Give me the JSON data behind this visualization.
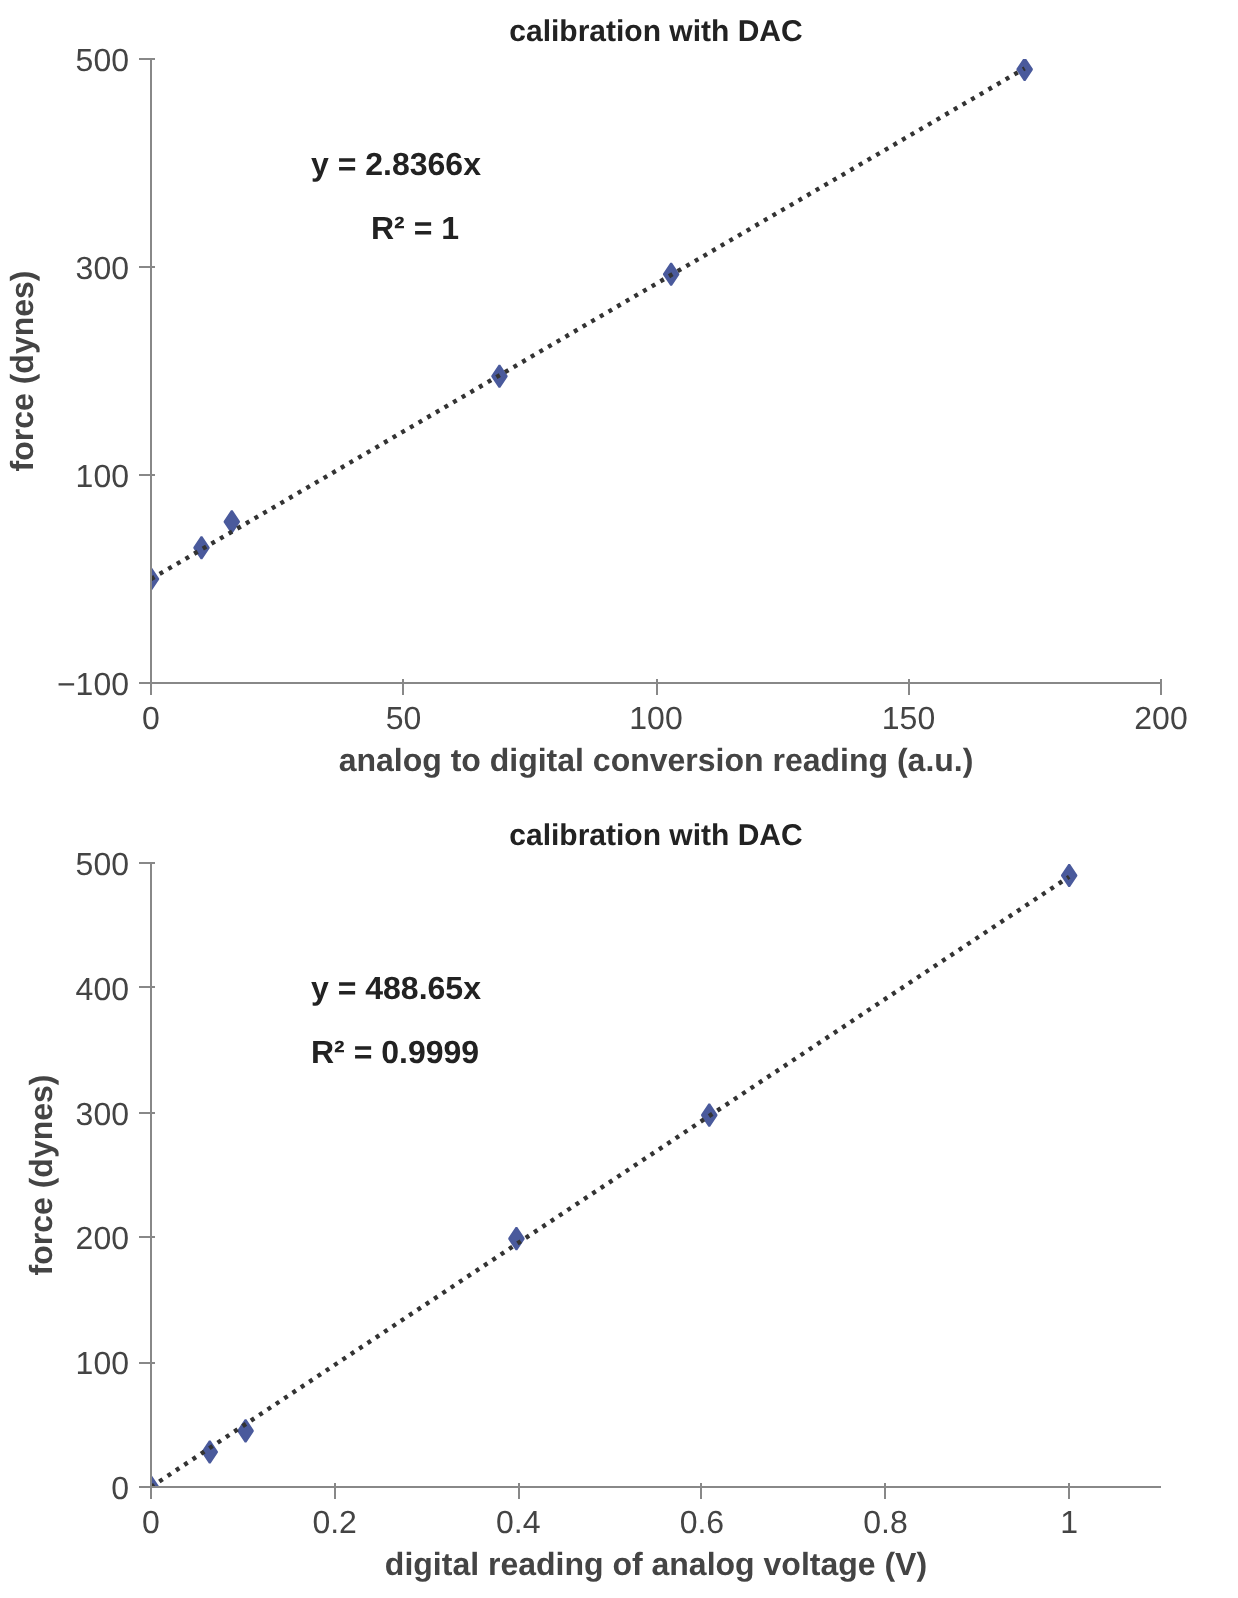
{
  "chart_data": [
    {
      "type": "scatter",
      "title": "calibration with DAC",
      "xlabel": "analog to digital conversion reading (a.u.)",
      "ylabel": "force (dynes)",
      "xlim": [
        0,
        200
      ],
      "xticks": [
        0,
        50,
        100,
        150,
        200
      ],
      "ylim": [
        -100,
        500
      ],
      "yticks": [
        -100,
        100,
        300,
        500
      ],
      "grid": false,
      "series": [
        {
          "marker": "diamond",
          "color": "#4a5a9c",
          "x": [
            0,
            10,
            16,
            69,
            103,
            173
          ],
          "values": [
            0,
            30,
            55,
            195,
            293,
            490
          ]
        },
        {
          "type": "line",
          "color": "#333333",
          "line_style": "dotted",
          "x": [
            0,
            173
          ],
          "values": [
            0,
            491
          ]
        }
      ],
      "annotations": [
        "y = 2.8366x",
        "R² = 1"
      ]
    },
    {
      "type": "scatter",
      "title": "calibration with DAC",
      "xlabel": "digital reading of analog voltage (V)",
      "ylabel": "force (dynes)",
      "xlim": [
        0,
        1.1
      ],
      "xticks": [
        0,
        0.2,
        0.4,
        0.6,
        0.8,
        1
      ],
      "ylim": [
        0,
        500
      ],
      "yticks": [
        0,
        100,
        200,
        300,
        400,
        500
      ],
      "grid": false,
      "series": [
        {
          "marker": "diamond",
          "color": "#4a5a9c",
          "x": [
            0,
            0.064,
            0.103,
            0.398,
            0.608,
            1.0
          ],
          "values": [
            0,
            28,
            45,
            199,
            298,
            490
          ]
        },
        {
          "type": "line",
          "color": "#333333",
          "line_style": "dotted",
          "x": [
            0,
            1
          ],
          "values": [
            0,
            489
          ]
        }
      ],
      "annotations": [
        "y = 488.65x",
        "R² = 0.9999"
      ]
    }
  ]
}
